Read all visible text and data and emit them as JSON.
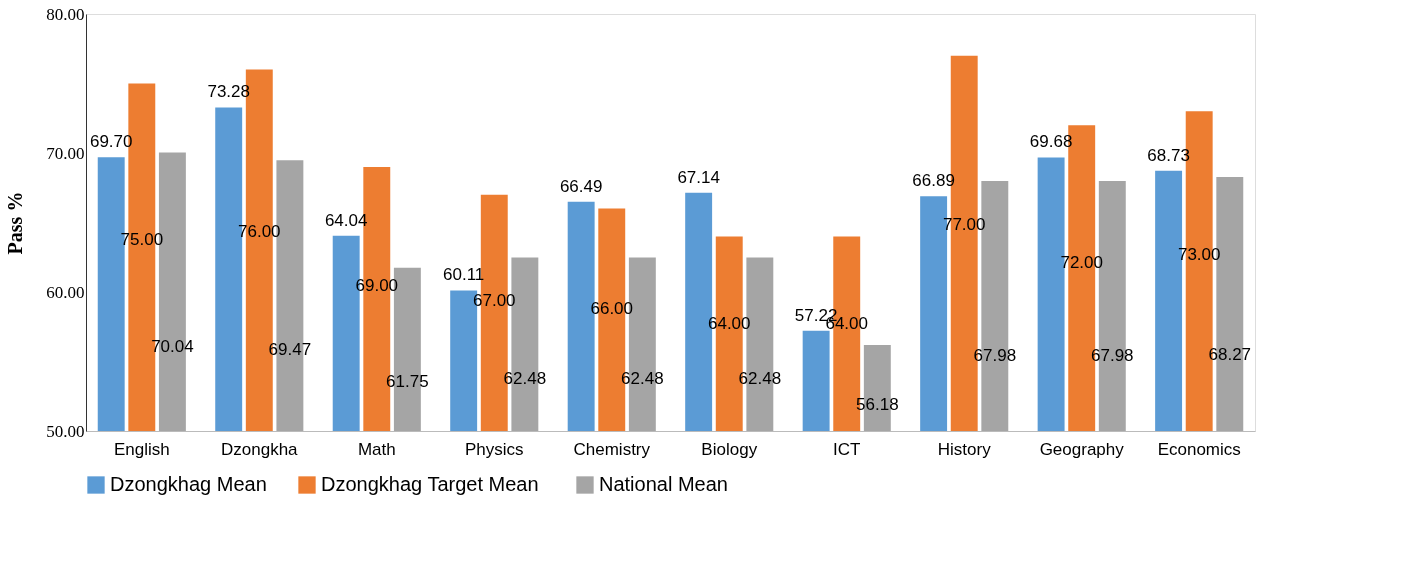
{
  "chart_data": {
    "type": "bar",
    "ylabel": "Pass %",
    "categories": [
      "English",
      "Dzongkha",
      "Math",
      "Physics",
      "Chemistry",
      "Biology",
      "ICT",
      "History",
      "Geography",
      "Economics"
    ],
    "series": [
      {
        "name": "Dzongkhag Mean",
        "color": "#5b9bd5",
        "values": [
          69.7,
          73.28,
          64.04,
          60.11,
          66.49,
          67.14,
          57.22,
          66.89,
          69.68,
          68.73
        ],
        "value_labels": [
          "69.70",
          "73.28",
          "64.04",
          "60.11",
          "66.49",
          "67.14",
          "57.22",
          "66.89",
          "69.68",
          "68.73"
        ]
      },
      {
        "name": "Dzongkhag Target  Mean",
        "color": "#ed7d31",
        "values": [
          75.0,
          76.0,
          69.0,
          67.0,
          66.0,
          64.0,
          64.0,
          77.0,
          72.0,
          73.0
        ],
        "value_labels": [
          "75.00",
          "76.00",
          "69.00",
          "67.00",
          "66.00",
          "64.00",
          "64.00",
          "77.00",
          "72.00",
          "73.00"
        ]
      },
      {
        "name": "National Mean",
        "color": "#a5a5a5",
        "values": [
          70.04,
          69.47,
          61.75,
          62.48,
          62.48,
          62.48,
          56.18,
          67.98,
          67.98,
          68.27
        ],
        "value_labels": [
          "70.04",
          "69.47",
          "61.75",
          "62.48",
          "62.48",
          "62.48",
          "56.18",
          "67.98",
          "67.98",
          "68.27"
        ]
      }
    ],
    "ylim": [
      50,
      80
    ],
    "yticks": [
      {
        "value": 50,
        "label": "50.00"
      },
      {
        "value": 60,
        "label": "60.00"
      },
      {
        "value": 70,
        "label": "70.00"
      },
      {
        "value": 80,
        "label": "80.00"
      }
    ],
    "grid": false,
    "legend": "bottom"
  }
}
